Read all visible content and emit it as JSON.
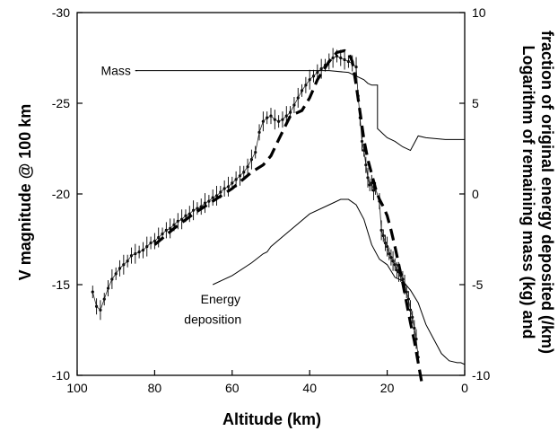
{
  "chart_data": {
    "type": "line",
    "xlabel": "Altitude (km)",
    "ylabel_left": "V magnitude @ 100 km",
    "ylabel_right": [
      "Logarithm of remaining mass (kg) and",
      "fraction of original energy deposited (/km)"
    ],
    "xlim": [
      100,
      0
    ],
    "ylim_left": [
      -10,
      -30
    ],
    "ylim_right": [
      -10,
      10
    ],
    "x_ticks": [
      100,
      80,
      60,
      40,
      20,
      0
    ],
    "x_tick_labels": [
      "100",
      "80",
      "60",
      "40",
      "20",
      "0"
    ],
    "y_left_ticks": [
      -30,
      -25,
      -20,
      -15,
      -10
    ],
    "y_left_tick_labels": [
      "-30",
      "-25",
      "-20",
      "-15",
      "-10"
    ],
    "y_right_ticks": [
      10,
      5,
      0,
      -5,
      -10
    ],
    "y_right_tick_labels": [
      "10",
      "5",
      "0",
      "-5",
      "-10"
    ],
    "grid": false,
    "annotations": [
      {
        "text": "Mass",
        "x": 90,
        "y": 6.8
      },
      {
        "text": "Energy",
        "x": 63,
        "y": -5.8
      },
      {
        "text": "deposition",
        "x": 65,
        "y": -6.9
      }
    ],
    "series": [
      {
        "axis": "left",
        "style": "points-with-errorbars",
        "x": [
          96,
          95,
          94,
          93,
          92,
          91,
          90,
          89,
          88,
          87,
          86,
          85,
          84,
          83,
          82,
          81,
          80,
          79,
          78,
          77,
          76,
          75,
          74,
          73,
          72,
          71,
          70,
          69,
          68,
          67,
          66,
          65,
          64,
          63,
          62,
          61,
          60,
          59,
          58,
          57,
          56,
          55,
          54,
          53,
          52,
          51,
          50,
          49,
          48,
          47,
          46,
          45,
          44,
          43,
          42,
          41,
          40,
          39,
          38,
          37,
          36,
          35,
          34,
          33,
          32,
          31,
          30,
          29,
          28,
          27.5,
          27,
          26.5,
          26,
          25.5,
          25,
          24.5,
          24,
          23.5,
          23,
          22,
          21.5,
          21,
          20.5,
          20,
          19.5,
          19,
          18.5,
          18,
          17.5,
          17,
          16.5,
          16,
          15.5,
          15,
          14.5,
          14,
          13.5,
          13,
          12.5,
          12
        ],
        "y": [
          -14.6,
          -13.8,
          -13.6,
          -14.2,
          -14.8,
          -15.3,
          -15.6,
          -15.9,
          -16.1,
          -16.3,
          -16.6,
          -16.7,
          -16.8,
          -16.9,
          -17.1,
          -17.3,
          -17.4,
          -17.6,
          -17.8,
          -18.0,
          -18.1,
          -18.3,
          -18.5,
          -18.6,
          -18.8,
          -18.9,
          -19.1,
          -19.2,
          -19.3,
          -19.5,
          -19.6,
          -19.8,
          -19.9,
          -20.1,
          -20.3,
          -20.4,
          -20.6,
          -20.8,
          -21.0,
          -21.2,
          -21.5,
          -21.9,
          -22.3,
          -23.4,
          -24.0,
          -24.2,
          -24.3,
          -24.1,
          -24.0,
          -24.1,
          -24.3,
          -24.5,
          -24.9,
          -25.3,
          -25.7,
          -26.0,
          -26.3,
          -26.5,
          -26.7,
          -26.9,
          -27.1,
          -27.3,
          -27.5,
          -27.6,
          -27.5,
          -27.4,
          -27.3,
          -27.2,
          -27.0,
          -25.4,
          -24.2,
          -22.9,
          -22.4,
          -21.6,
          -20.9,
          -20.5,
          -20.6,
          -20.2,
          -20.3,
          -19.6,
          -18.0,
          -17.7,
          -17.3,
          -17.1,
          -16.7,
          -16.5,
          -16.3,
          -16.1,
          -15.8,
          -15.7,
          -15.5,
          -15.3,
          -15.0,
          -14.6,
          -14.2,
          -13.6,
          -13.2,
          -12.6,
          -12.0,
          -11.0
        ]
      },
      {
        "axis": "left",
        "style": "dashed",
        "x": [
          80,
          75,
          70,
          65,
          60,
          55,
          52,
          50,
          48,
          45,
          42,
          40,
          38,
          35,
          33,
          31,
          30,
          29,
          28,
          27,
          26,
          25,
          24,
          23,
          22,
          21,
          20,
          19,
          18,
          17,
          16,
          15,
          14,
          13,
          12,
          11
        ],
        "y": [
          -17.2,
          -18.1,
          -18.9,
          -19.6,
          -20.3,
          -21.2,
          -21.6,
          -22.1,
          -23.0,
          -24.3,
          -24.6,
          -25.3,
          -26.3,
          -27.3,
          -27.8,
          -27.9,
          -27.8,
          -27.3,
          -26.0,
          -24.5,
          -23.0,
          -21.9,
          -21.1,
          -20.3,
          -19.7,
          -19.3,
          -18.8,
          -18.0,
          -17.1,
          -16.1,
          -15.1,
          -14.0,
          -12.9,
          -11.9,
          -10.7,
          -9.5
        ]
      },
      {
        "axis": "right",
        "style": "solid",
        "name": "Mass",
        "x": [
          85,
          80,
          70,
          60,
          50,
          40,
          35,
          30,
          28,
          26,
          25,
          24,
          23,
          22.5,
          22.5,
          22,
          21,
          20,
          18,
          16,
          14,
          12,
          10,
          5,
          0
        ],
        "y": [
          6.8,
          6.8,
          6.8,
          6.8,
          6.8,
          6.8,
          6.8,
          6.7,
          6.5,
          6.3,
          6.1,
          6.0,
          6.0,
          6.0,
          3.6,
          3.5,
          3.3,
          3.1,
          2.9,
          2.6,
          2.4,
          3.2,
          3.1,
          3.0,
          3.0
        ]
      },
      {
        "axis": "right",
        "style": "solid",
        "name": "Energy deposition",
        "x": [
          65,
          62,
          60,
          55,
          52,
          51,
          50,
          45,
          40,
          35,
          32,
          30,
          28,
          26,
          24,
          22,
          20,
          18,
          16,
          14,
          12,
          10,
          8,
          6,
          4,
          2,
          1,
          0
        ],
        "y": [
          -5.0,
          -4.7,
          -4.5,
          -3.8,
          -3.3,
          -3.2,
          -2.9,
          -2.0,
          -1.1,
          -0.6,
          -0.3,
          -0.3,
          -0.6,
          -1.4,
          -2.8,
          -3.6,
          -3.9,
          -4.6,
          -4.8,
          -5.3,
          -6.0,
          -7.2,
          -8.0,
          -8.8,
          -9.2,
          -9.3,
          -9.3,
          -9.4
        ]
      }
    ]
  }
}
